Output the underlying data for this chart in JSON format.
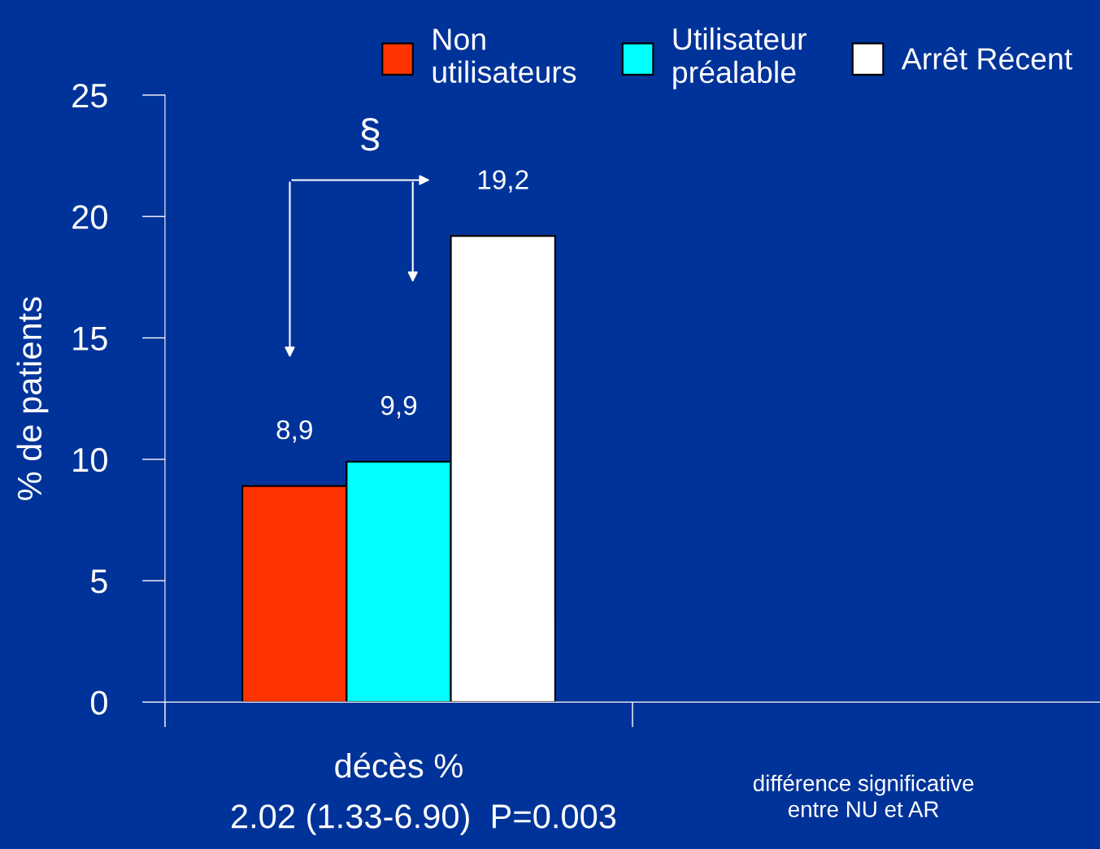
{
  "chart_data": {
    "type": "bar",
    "ylabel": "% de patients",
    "categories": [
      "décès %",
      null
    ],
    "series": [
      {
        "name": "Non\nutilisateurs",
        "color": "#ff3300",
        "values": [
          8.9,
          null
        ],
        "value_labels": [
          "8,9",
          null
        ]
      },
      {
        "name": "Utilisateur\npréalable",
        "color": "#00ffff",
        "values": [
          9.9,
          null
        ],
        "value_labels": [
          "9,9",
          null
        ]
      },
      {
        "name": "Arrêt Récent",
        "color": "#ffffff",
        "values": [
          19.2,
          null
        ],
        "value_labels": [
          "19,2",
          null
        ]
      }
    ],
    "ylim": [
      0,
      25
    ],
    "yticks": [
      0,
      5,
      10,
      15,
      20,
      25
    ],
    "grid": false,
    "legend": "top",
    "annotations": [
      "§",
      "2.02 (1.33-6.90)  P=0.003",
      "différence significative\nentre NU et AR"
    ]
  }
}
